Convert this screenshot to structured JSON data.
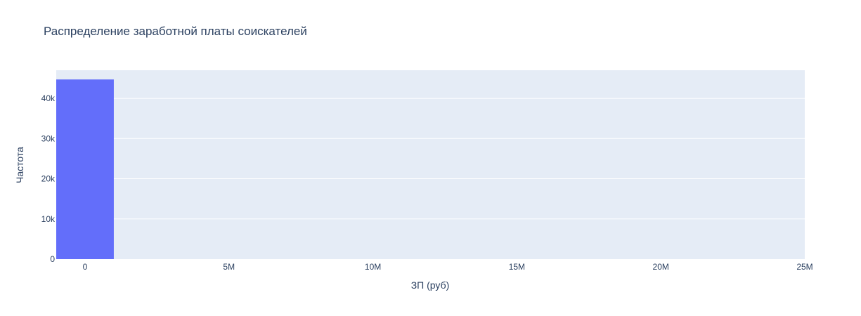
{
  "chart_data": {
    "type": "bar",
    "title": "Распределение заработной платы соискателей",
    "xlabel": "ЗП (руб)",
    "ylabel": "Частота",
    "xlim": [
      -1000000,
      25000000
    ],
    "ylim": [
      0,
      47000
    ],
    "grid": true,
    "plot_bg": "#e5ecf6",
    "bar_color": "#636efa",
    "x_ticks": [
      {
        "value": 0,
        "label": "0"
      },
      {
        "value": 5000000,
        "label": "5M"
      },
      {
        "value": 10000000,
        "label": "10M"
      },
      {
        "value": 15000000,
        "label": "15M"
      },
      {
        "value": 20000000,
        "label": "20M"
      },
      {
        "value": 25000000,
        "label": "25M"
      }
    ],
    "y_ticks": [
      {
        "value": 0,
        "label": "0"
      },
      {
        "value": 10000,
        "label": "10k"
      },
      {
        "value": 20000,
        "label": "20k"
      },
      {
        "value": 30000,
        "label": "30k"
      },
      {
        "value": 40000,
        "label": "40k"
      }
    ],
    "bins": [
      {
        "start": -1000000,
        "end": 1000000,
        "count": 44700
      }
    ]
  }
}
